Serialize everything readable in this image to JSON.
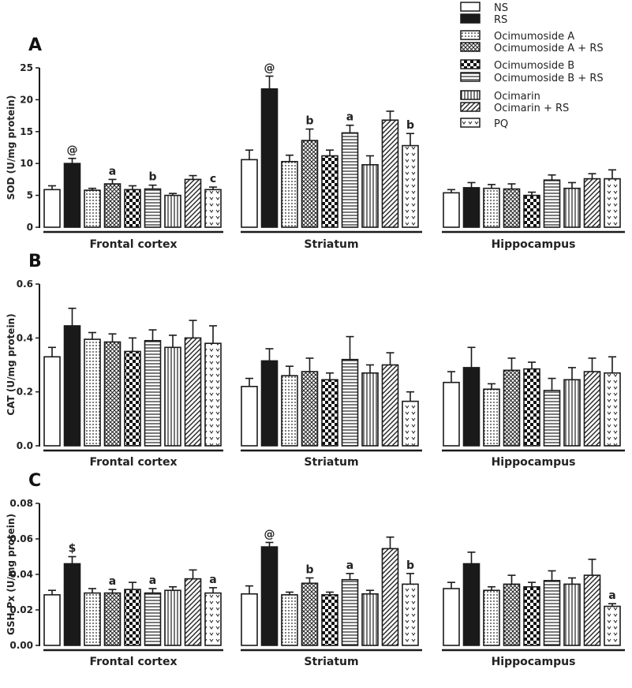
{
  "legend": {
    "entries": [
      "NS",
      "RS",
      "Ocimumoside A",
      "Ocimumoside A + RS",
      "Ocimumoside B",
      "Ocimumoside B + RS",
      "Ocimarin",
      "Ocimarin + RS",
      "PQ"
    ]
  },
  "colors": {
    "ink": "#1a1a1a",
    "rs_fill": "#1a1a1a",
    "ns_fill": "#ffffff"
  },
  "chart_data": [
    {
      "type": "bar",
      "panel_label": "A",
      "ylabel": "SOD (U/mg protein)",
      "ylim": [
        0,
        25
      ],
      "yticks": [
        "0",
        "5",
        "10",
        "15",
        "20",
        "25"
      ],
      "ytick_values": [
        0,
        5,
        10,
        15,
        20,
        25
      ],
      "groups": [
        "Frontal cortex",
        "Striatum",
        "Hippocampus"
      ],
      "series": [
        {
          "name": "NS",
          "values": [
            5.9,
            10.6,
            5.4
          ],
          "errors": [
            0.6,
            1.5,
            0.5
          ],
          "sig": [
            "",
            "",
            ""
          ]
        },
        {
          "name": "RS",
          "values": [
            10.0,
            21.7,
            6.2
          ],
          "errors": [
            0.8,
            2.0,
            0.8
          ],
          "sig": [
            "@",
            "@",
            ""
          ]
        },
        {
          "name": "Ocimumoside A",
          "values": [
            5.8,
            10.3,
            6.1
          ],
          "errors": [
            0.3,
            1.0,
            0.6
          ],
          "sig": [
            "",
            "",
            ""
          ]
        },
        {
          "name": "Ocimumoside A + RS",
          "values": [
            6.8,
            13.6,
            6.0
          ],
          "errors": [
            0.7,
            1.8,
            0.8
          ],
          "sig": [
            "a",
            "b",
            ""
          ]
        },
        {
          "name": "Ocimumoside B",
          "values": [
            5.9,
            11.2,
            5.0
          ],
          "errors": [
            0.6,
            0.9,
            0.5
          ],
          "sig": [
            "",
            "",
            ""
          ]
        },
        {
          "name": "Ocimumoside B + RS",
          "values": [
            6.0,
            14.8,
            7.4
          ],
          "errors": [
            0.6,
            1.2,
            0.8
          ],
          "sig": [
            "b",
            "a",
            ""
          ]
        },
        {
          "name": "Ocimarin",
          "values": [
            5.0,
            9.8,
            6.1
          ],
          "errors": [
            0.3,
            1.4,
            0.9
          ],
          "sig": [
            "",
            "",
            ""
          ]
        },
        {
          "name": "Ocimarin + RS",
          "values": [
            7.5,
            16.8,
            7.6
          ],
          "errors": [
            0.6,
            1.4,
            0.8
          ],
          "sig": [
            "",
            "",
            ""
          ]
        },
        {
          "name": "PQ",
          "values": [
            5.9,
            12.8,
            7.6
          ],
          "errors": [
            0.4,
            1.9,
            1.4
          ],
          "sig": [
            "c",
            "b",
            ""
          ]
        }
      ]
    },
    {
      "type": "bar",
      "panel_label": "B",
      "ylabel": "CAT (U/mg protein)",
      "ylim": [
        0,
        0.6
      ],
      "yticks": [
        "0.0",
        "0.2",
        "0.4",
        "0.6"
      ],
      "ytick_values": [
        0,
        0.2,
        0.4,
        0.6
      ],
      "groups": [
        "Frontal cortex",
        "Striatum",
        "Hippocampus"
      ],
      "series": [
        {
          "name": "NS",
          "values": [
            0.33,
            0.22,
            0.235
          ],
          "errors": [
            0.035,
            0.03,
            0.04
          ],
          "sig": [
            "",
            "",
            ""
          ]
        },
        {
          "name": "RS",
          "values": [
            0.445,
            0.315,
            0.29
          ],
          "errors": [
            0.065,
            0.045,
            0.075
          ],
          "sig": [
            "",
            "",
            ""
          ]
        },
        {
          "name": "Ocimumoside A",
          "values": [
            0.395,
            0.26,
            0.21
          ],
          "errors": [
            0.025,
            0.035,
            0.02
          ],
          "sig": [
            "",
            "",
            ""
          ]
        },
        {
          "name": "Ocimumoside A + RS",
          "values": [
            0.385,
            0.275,
            0.28
          ],
          "errors": [
            0.03,
            0.05,
            0.045
          ],
          "sig": [
            "",
            "",
            ""
          ]
        },
        {
          "name": "Ocimumoside B",
          "values": [
            0.35,
            0.245,
            0.285
          ],
          "errors": [
            0.05,
            0.025,
            0.025
          ],
          "sig": [
            "",
            "",
            ""
          ]
        },
        {
          "name": "Ocimumoside B + RS",
          "values": [
            0.39,
            0.32,
            0.205
          ],
          "errors": [
            0.04,
            0.085,
            0.045
          ],
          "sig": [
            "",
            "",
            ""
          ]
        },
        {
          "name": "Ocimarin",
          "values": [
            0.365,
            0.27,
            0.245
          ],
          "errors": [
            0.045,
            0.03,
            0.045
          ],
          "sig": [
            "",
            "",
            ""
          ]
        },
        {
          "name": "Ocimarin + RS",
          "values": [
            0.4,
            0.3,
            0.275
          ],
          "errors": [
            0.065,
            0.045,
            0.05
          ],
          "sig": [
            "",
            "",
            ""
          ]
        },
        {
          "name": "PQ",
          "values": [
            0.38,
            0.165,
            0.27
          ],
          "errors": [
            0.065,
            0.035,
            0.06
          ],
          "sig": [
            "",
            "",
            ""
          ]
        }
      ]
    },
    {
      "type": "bar",
      "panel_label": "C",
      "ylabel": "GSH-Px (U/mg protein)",
      "ylim": [
        0,
        0.08
      ],
      "yticks": [
        "0.00",
        "0.02",
        "0.04",
        "0.06",
        "0.08"
      ],
      "ytick_values": [
        0,
        0.02,
        0.04,
        0.06,
        0.08
      ],
      "groups": [
        "Frontal cortex",
        "Striatum",
        "Hippocampus"
      ],
      "series": [
        {
          "name": "NS",
          "values": [
            0.0285,
            0.029,
            0.032
          ],
          "errors": [
            0.0025,
            0.0045,
            0.0035
          ],
          "sig": [
            "",
            "",
            ""
          ]
        },
        {
          "name": "RS",
          "values": [
            0.046,
            0.0555,
            0.046
          ],
          "errors": [
            0.004,
            0.0025,
            0.0065
          ],
          "sig": [
            "$",
            "@",
            ""
          ]
        },
        {
          "name": "Ocimumoside A",
          "values": [
            0.0295,
            0.0285,
            0.031
          ],
          "errors": [
            0.0025,
            0.0015,
            0.002
          ],
          "sig": [
            "",
            "",
            ""
          ]
        },
        {
          "name": "Ocimumoside A + RS",
          "values": [
            0.0295,
            0.035,
            0.0345
          ],
          "errors": [
            0.002,
            0.003,
            0.005
          ],
          "sig": [
            "a",
            "b",
            ""
          ]
        },
        {
          "name": "Ocimumoside B",
          "values": [
            0.0315,
            0.0285,
            0.033
          ],
          "errors": [
            0.004,
            0.0015,
            0.0025
          ],
          "sig": [
            "",
            "",
            ""
          ]
        },
        {
          "name": "Ocimumoside B + RS",
          "values": [
            0.0295,
            0.037,
            0.0365
          ],
          "errors": [
            0.0025,
            0.0035,
            0.0055
          ],
          "sig": [
            "a",
            "a",
            ""
          ]
        },
        {
          "name": "Ocimarin",
          "values": [
            0.031,
            0.029,
            0.0345
          ],
          "errors": [
            0.002,
            0.002,
            0.0035
          ],
          "sig": [
            "",
            "",
            ""
          ]
        },
        {
          "name": "Ocimarin + RS",
          "values": [
            0.0375,
            0.0545,
            0.0395
          ],
          "errors": [
            0.005,
            0.0065,
            0.009
          ],
          "sig": [
            "",
            "",
            ""
          ]
        },
        {
          "name": "PQ",
          "values": [
            0.0295,
            0.0345,
            0.022
          ],
          "errors": [
            0.003,
            0.006,
            0.0015
          ],
          "sig": [
            "a",
            "b",
            "a"
          ]
        }
      ]
    }
  ]
}
